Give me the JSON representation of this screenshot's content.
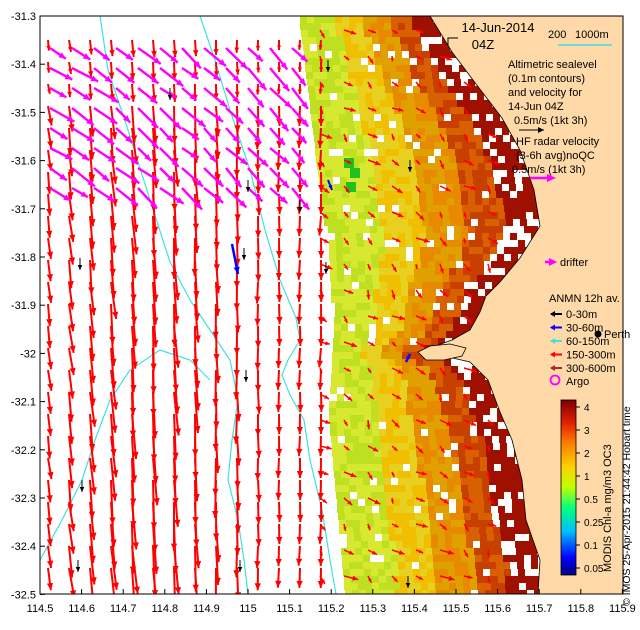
{
  "title": {
    "date": "14-Jun-2014",
    "time": "04Z"
  },
  "depth_legend": {
    "label1": "200",
    "label2": "1000m",
    "color": "#40e0e0"
  },
  "altimetry_legend": {
    "line1": "Altimetric sealevel",
    "line2": "(0.1m contours)",
    "line3": "and velocity for",
    "line4": "14-Jun 04Z",
    "line5": "0.5m/s (1kt 3h)"
  },
  "hf_radar_legend": {
    "line1": "HF radar velocity",
    "line2": "(3-6h avg)noQC",
    "line3": "0.5m/s (1kt 3h)"
  },
  "drifter_label": "drifter",
  "anmn_legend": {
    "title": "ANMN 12h av.",
    "items": [
      {
        "label": "0-30m",
        "color": "#000000"
      },
      {
        "label": "30-60m",
        "color": "#0000ff"
      },
      {
        "label": "60-150m",
        "color": "#40e0e0"
      },
      {
        "label": "150-300m",
        "color": "#ff0000"
      },
      {
        "label": "300-600m",
        "color": "#a52a2a"
      }
    ]
  },
  "place_label": "Perth",
  "argo_label": "Argo",
  "colorbar": {
    "ticks": [
      "4",
      "3",
      "2",
      "1",
      "0.5",
      "0.25",
      "0.1",
      "0.05"
    ],
    "label": "MODIS Chl-a mg/m3 OC3"
  },
  "credit": "© IMOS 25-Apr-2015 21:44:42 Hobart time",
  "axes": {
    "y_ticks": [
      "-31.3",
      "-31.4",
      "-31.5",
      "-31.6",
      "-31.7",
      "-31.8",
      "-31.9",
      "-32",
      "-32.1",
      "-32.2",
      "-32.3",
      "-32.4",
      "-32.5"
    ],
    "x_ticks": [
      "114.5",
      "114.6",
      "114.7",
      "114.8",
      "114.9",
      "115",
      "115.1",
      "115.2",
      "115.3",
      "115.4",
      "115.5",
      "115.6",
      "115.7",
      "115.8",
      "115.9"
    ]
  },
  "colors": {
    "land": "#ffd9a8",
    "hf_vector": "#ff00ff",
    "alt_vector": "#ff0000",
    "contour": "#40e0e0",
    "chl_low": "#bfe020",
    "chl_mid": "#e0a000",
    "chl_high": "#a01000"
  }
}
